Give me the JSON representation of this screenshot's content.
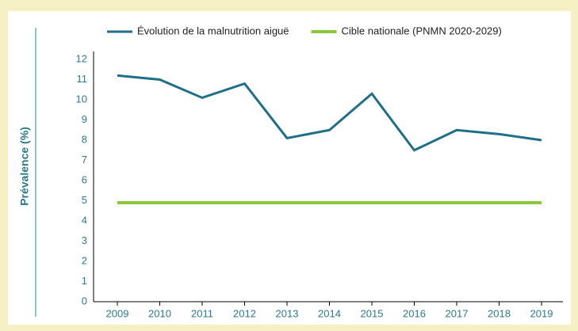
{
  "chart_data": {
    "type": "line",
    "y_label": "Prévalence (%)",
    "categories": [
      "2009",
      "2010",
      "2011",
      "2012",
      "2013",
      "2014",
      "2015",
      "2016",
      "2017",
      "2018",
      "2019"
    ],
    "series": [
      {
        "name": "Évolution de la malnutrition aiguë",
        "color": "#1f6f8b",
        "values": [
          11.2,
          11.0,
          10.1,
          10.8,
          8.1,
          8.5,
          10.3,
          7.5,
          8.5,
          8.3,
          8.0
        ]
      },
      {
        "name": "Cible nationale (PNMN 2020-2029)",
        "color": "#8cc63f",
        "values": [
          4.9,
          4.9,
          4.9,
          4.9,
          4.9,
          4.9,
          4.9,
          4.9,
          4.9,
          4.9,
          4.9
        ]
      }
    ],
    "ylim": [
      0,
      12
    ],
    "yticks": [
      0,
      1,
      2,
      3,
      4,
      5,
      6,
      7,
      8,
      9,
      10,
      11,
      12
    ],
    "legend": "top"
  }
}
